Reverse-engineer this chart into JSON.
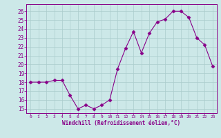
{
  "hours": [
    0,
    1,
    2,
    3,
    4,
    5,
    6,
    7,
    8,
    9,
    10,
    11,
    12,
    13,
    14,
    15,
    16,
    17,
    18,
    19,
    20,
    21,
    22,
    23
  ],
  "temps": [
    18,
    18,
    18,
    18.2,
    18.2,
    16.5,
    15,
    15.4,
    15,
    15.4,
    16.0,
    19.5,
    21.8,
    23.7,
    21.3,
    23.5,
    24.8,
    25.1,
    26.0,
    26.0,
    25.3,
    23.0,
    22.2,
    19.8
  ],
  "line_color": "#880088",
  "marker": "D",
  "bg_color": "#cce8e8",
  "grid_color": "#aacccc",
  "xlabel": "Windchill (Refroidissement éolien,°C)",
  "ylim": [
    14.5,
    26.8
  ],
  "yticks": [
    15,
    16,
    17,
    18,
    19,
    20,
    21,
    22,
    23,
    24,
    25,
    26
  ],
  "xticks": [
    0,
    1,
    2,
    3,
    4,
    5,
    6,
    7,
    8,
    9,
    10,
    11,
    12,
    13,
    14,
    15,
    16,
    17,
    18,
    19,
    20,
    21,
    22,
    23
  ],
  "tick_color": "#880088",
  "label_color": "#880088",
  "spine_color": "#880088"
}
